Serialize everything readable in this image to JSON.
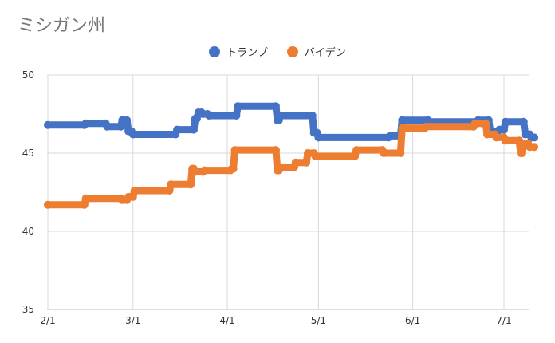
{
  "chart_data": {
    "type": "line",
    "title": "ミシガン州",
    "xlabel": "",
    "ylabel": "",
    "ylim": [
      35,
      50
    ],
    "yticks": [
      "50",
      "45",
      "40",
      "35"
    ],
    "xticks": [
      {
        "label": "2/1",
        "day": 0
      },
      {
        "label": "3/1",
        "day": 28
      },
      {
        "label": "4/1",
        "day": 59
      },
      {
        "label": "5/1",
        "day": 89
      },
      {
        "label": "6/1",
        "day": 120
      },
      {
        "label": "7/1",
        "day": 150
      }
    ],
    "xlim": [
      0,
      157
    ],
    "grid": true,
    "legend_position": "top",
    "series": [
      {
        "name": "トランプ",
        "color": "#4472C4",
        "points": [
          [
            0,
            46.8
          ],
          [
            12,
            46.8
          ],
          [
            12.5,
            46.9
          ],
          [
            19,
            46.9
          ],
          [
            19.5,
            46.7
          ],
          [
            24,
            46.7
          ],
          [
            24.5,
            47.1
          ],
          [
            26,
            47.1
          ],
          [
            26.5,
            46.4
          ],
          [
            27.5,
            46.4
          ],
          [
            28,
            46.2
          ],
          [
            42,
            46.2
          ],
          [
            42.5,
            46.5
          ],
          [
            48,
            46.5
          ],
          [
            48.5,
            47.2
          ],
          [
            49,
            47.2
          ],
          [
            49.5,
            47.6
          ],
          [
            50.5,
            47.6
          ],
          [
            51,
            47.5
          ],
          [
            52.5,
            47.5
          ],
          [
            53,
            47.4
          ],
          [
            62,
            47.4
          ],
          [
            62.5,
            48.0
          ],
          [
            75,
            48.0
          ],
          [
            75.5,
            47.1
          ],
          [
            76,
            47.1
          ],
          [
            76.5,
            47.4
          ],
          [
            87,
            47.4
          ],
          [
            87.5,
            46.3
          ],
          [
            88.5,
            46.3
          ],
          [
            89,
            46.0
          ],
          [
            112,
            46.0
          ],
          [
            112.5,
            46.1
          ],
          [
            116,
            46.1
          ],
          [
            116.5,
            47.1
          ],
          [
            125,
            47.1
          ],
          [
            125.5,
            47.0
          ],
          [
            141,
            47.0
          ],
          [
            141.5,
            47.1
          ],
          [
            145,
            47.1
          ],
          [
            145.5,
            46.4
          ],
          [
            148,
            46.4
          ],
          [
            148.5,
            46.5
          ],
          [
            150,
            46.5
          ],
          [
            150.5,
            47.0
          ],
          [
            156.5,
            47.0
          ],
          [
            157,
            46.2
          ],
          [
            158.5,
            46.2
          ],
          [
            159,
            46.0
          ],
          [
            160,
            46.0
          ]
        ]
      },
      {
        "name": "バイデン",
        "color": "#ED7D31",
        "points": [
          [
            0,
            41.7
          ],
          [
            12,
            41.7
          ],
          [
            12.5,
            42.1
          ],
          [
            24,
            42.1
          ],
          [
            24.5,
            42.0
          ],
          [
            26,
            42.0
          ],
          [
            26.5,
            42.2
          ],
          [
            28,
            42.2
          ],
          [
            28.5,
            42.6
          ],
          [
            40,
            42.6
          ],
          [
            40.5,
            43.0
          ],
          [
            47,
            43.0
          ],
          [
            47.5,
            44.0
          ],
          [
            48,
            44.0
          ],
          [
            48.5,
            43.8
          ],
          [
            51,
            43.8
          ],
          [
            51.5,
            43.9
          ],
          [
            60,
            43.9
          ],
          [
            60.5,
            44.0
          ],
          [
            61,
            44.0
          ],
          [
            61.5,
            45.2
          ],
          [
            75,
            45.2
          ],
          [
            75.5,
            43.9
          ],
          [
            76,
            43.9
          ],
          [
            76.5,
            44.1
          ],
          [
            81,
            44.1
          ],
          [
            81.5,
            44.4
          ],
          [
            85,
            44.4
          ],
          [
            85.5,
            45.0
          ],
          [
            87.5,
            45.0
          ],
          [
            88,
            44.8
          ],
          [
            101,
            44.8
          ],
          [
            101.5,
            45.2
          ],
          [
            110,
            45.2
          ],
          [
            110.5,
            45.0
          ],
          [
            116,
            45.0
          ],
          [
            116.5,
            46.6
          ],
          [
            124,
            46.6
          ],
          [
            124.5,
            46.7
          ],
          [
            140,
            46.7
          ],
          [
            140.5,
            46.9
          ],
          [
            144,
            46.9
          ],
          [
            144.5,
            46.2
          ],
          [
            147,
            46.2
          ],
          [
            147.5,
            46.0
          ],
          [
            150,
            46.0
          ],
          [
            150.5,
            45.8
          ],
          [
            155,
            45.8
          ],
          [
            155.5,
            45.0
          ],
          [
            156,
            45.0
          ],
          [
            156.5,
            45.6
          ],
          [
            158,
            45.6
          ],
          [
            158.5,
            45.4
          ],
          [
            160,
            45.4
          ]
        ]
      }
    ]
  }
}
